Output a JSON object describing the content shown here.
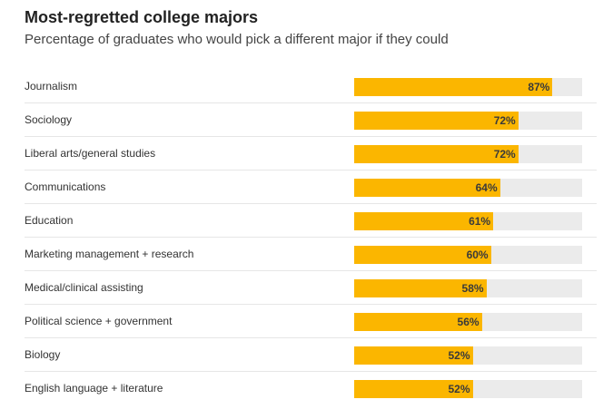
{
  "chart_data": {
    "type": "bar",
    "title": "Most-regretted college majors",
    "subtitle": "Percentage of graduates who would pick a different major if they could",
    "categories": [
      "Journalism",
      "Sociology",
      "Liberal arts/general studies",
      "Communications",
      "Education",
      "Marketing management + research",
      "Medical/clinical assisting",
      "Political science + government",
      "Biology",
      "English language + literature"
    ],
    "values": [
      87,
      72,
      72,
      64,
      61,
      60,
      58,
      56,
      52,
      52
    ],
    "labels": [
      "87%",
      "72%",
      "72%",
      "64%",
      "61%",
      "60%",
      "58%",
      "56%",
      "52%",
      "52%"
    ],
    "ylim": [
      0,
      100
    ],
    "colors": {
      "bar": "#fbb600",
      "track": "#ebebeb"
    }
  }
}
